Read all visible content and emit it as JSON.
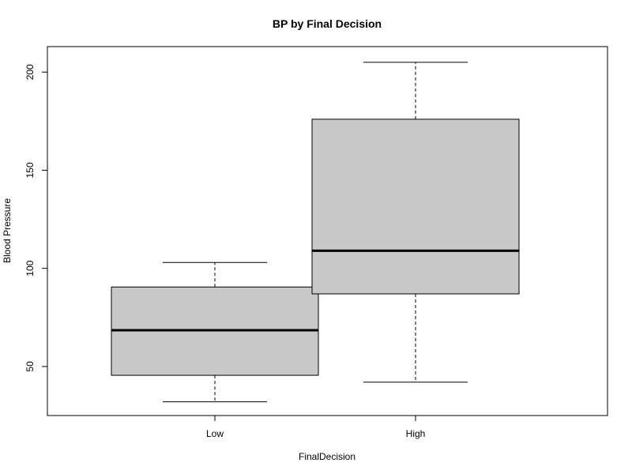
{
  "chart_data": {
    "type": "box",
    "title": "BP by Final Decision",
    "xlabel": "FinalDecision",
    "ylabel": "Blood Pressure",
    "ylim": [
      25,
      213
    ],
    "yticks": [
      50,
      100,
      150,
      200
    ],
    "ytick_labels": [
      "50",
      "100",
      "150",
      "200"
    ],
    "categories": [
      "Low",
      "High"
    ],
    "boxes": [
      {
        "category": "Low",
        "min": 32,
        "q1": 45.5,
        "median": 68.5,
        "q3": 90.5,
        "max": 103
      },
      {
        "category": "High",
        "min": 42,
        "q1": 87,
        "median": 109,
        "q3": 176,
        "max": 205
      }
    ],
    "box_fill": "#c8c8c8",
    "grid": false
  }
}
